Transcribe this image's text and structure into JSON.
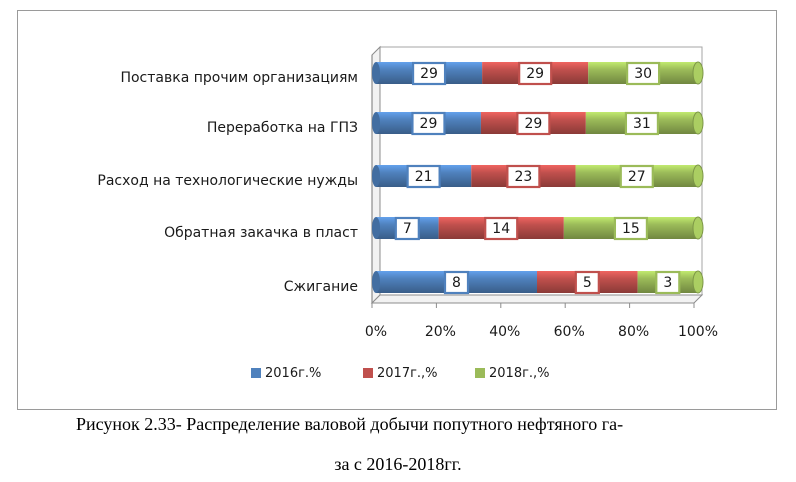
{
  "chart_data": {
    "type": "bar",
    "orientation": "horizontal",
    "stacked": "percent",
    "categories": [
      "Сжигание",
      "Обратная закачка в пласт",
      "Расход на технологические нужды",
      "Переработка на ГПЗ",
      "Поставка прочим организациям"
    ],
    "series": [
      {
        "name": "2016г.%",
        "color": "#4f81bd",
        "values": [
          8,
          7,
          21,
          29,
          29
        ]
      },
      {
        "name": "2017г.,%",
        "color": "#c0504d",
        "values": [
          5,
          14,
          23,
          29,
          29
        ]
      },
      {
        "name": "2018г.,%",
        "color": "#9bbb59",
        "values": [
          3,
          15,
          27,
          31,
          30
        ]
      }
    ],
    "x_ticks": [
      "0%",
      "20%",
      "40%",
      "60%",
      "80%",
      "100%"
    ],
    "xlim": [
      0,
      100
    ],
    "legend_position": "bottom",
    "grid": false
  },
  "caption": {
    "line1": "Рисунок 2.33- Распределение валовой добычи попутного нефтяного га-",
    "line2": "за с 2016-2018гг."
  }
}
